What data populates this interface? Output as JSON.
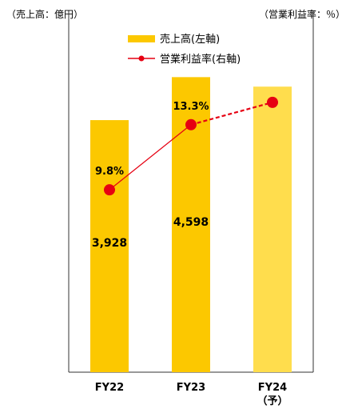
{
  "units": {
    "left": "（売上高：億円）",
    "right": "（営業利益率：％）"
  },
  "chart_data": {
    "type": "bar",
    "categories": [
      "FY22",
      "FY23",
      "FY24"
    ],
    "category_notes": [
      "",
      "",
      "（予）"
    ],
    "series": [
      {
        "name": "売上高(左軸)",
        "kind": "bar",
        "values": [
          3928,
          4598,
          4450
        ],
        "value_labels": [
          "3,928",
          "4,598",
          ""
        ],
        "colors": [
          "#fcc800",
          "#fcc800",
          "#ffdd4d"
        ]
      },
      {
        "name": "営業利益率(右軸)",
        "kind": "line",
        "axis": "right",
        "values": [
          9.8,
          13.3,
          14.5
        ],
        "value_labels": [
          "9.8%",
          "13.3%",
          ""
        ],
        "color": "#e60012",
        "forecast_from_index": 1
      }
    ],
    "ylim_left": [
      0,
      5800
    ],
    "ylim_right": [
      0,
      20
    ],
    "grid": false,
    "legend_position": "top-center"
  }
}
